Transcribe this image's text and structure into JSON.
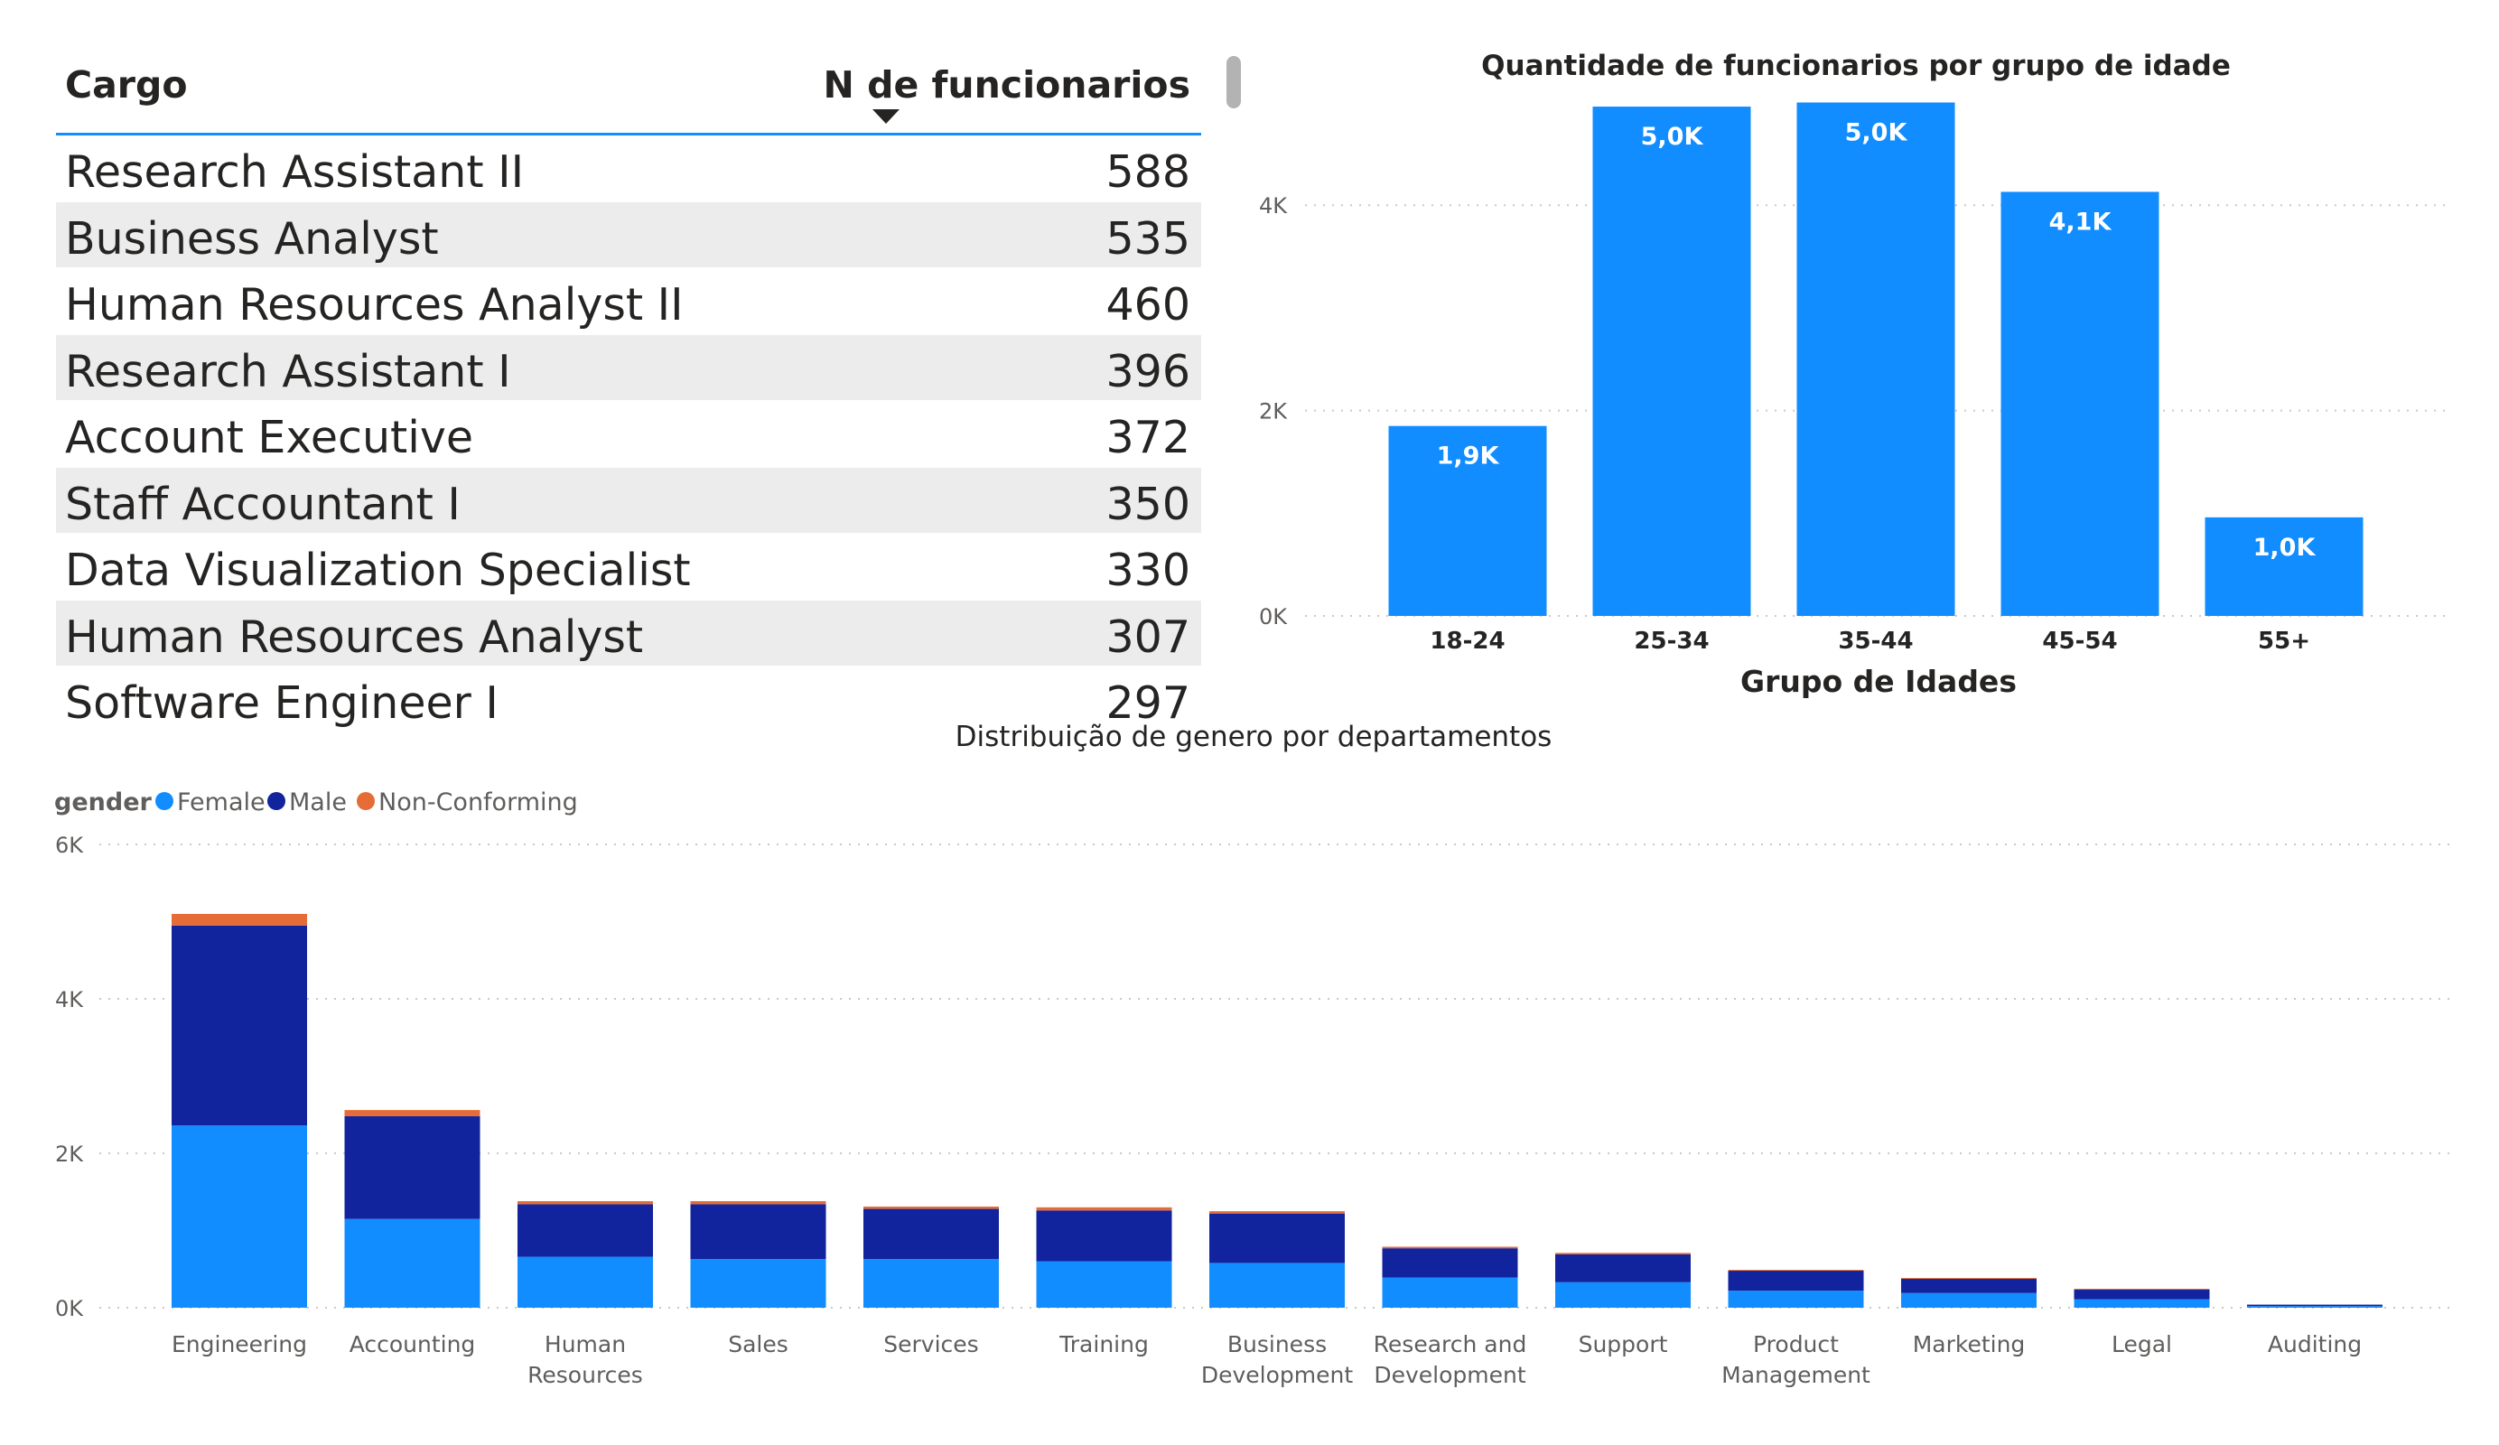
{
  "table": {
    "headers": {
      "cargo": "Cargo",
      "count": "N de funcionarios"
    },
    "rows": [
      {
        "cargo": "Research Assistant II",
        "count": "588"
      },
      {
        "cargo": "Business Analyst",
        "count": "535"
      },
      {
        "cargo": "Human Resources Analyst II",
        "count": "460"
      },
      {
        "cargo": "Research Assistant I",
        "count": "396"
      },
      {
        "cargo": "Account Executive",
        "count": "372"
      },
      {
        "cargo": "Staff Accountant I",
        "count": "350"
      },
      {
        "cargo": "Data Visualization Specialist",
        "count": "330"
      },
      {
        "cargo": "Human Resources Analyst",
        "count": "307"
      },
      {
        "cargo": "Software Engineer I",
        "count": "297"
      }
    ]
  },
  "chart_data": [
    {
      "type": "bar",
      "title": "Quantidade de funcionarios por grupo de idade",
      "xlabel": "Grupo de Idades",
      "ylabel": "",
      "categories": [
        "18-24",
        "25-34",
        "35-44",
        "45-54",
        "55+"
      ],
      "values": [
        1850,
        4960,
        5000,
        4130,
        960
      ],
      "data_labels": [
        "1,9K",
        "5,0K",
        "5,0K",
        "4,1K",
        "1,0K"
      ],
      "ylim": [
        0,
        5200
      ],
      "yticks": [
        {
          "v": 0,
          "label": "0K"
        },
        {
          "v": 2000,
          "label": "2K"
        },
        {
          "v": 4000,
          "label": "4K"
        }
      ],
      "grid": true,
      "color": "#118dff"
    },
    {
      "type": "bar",
      "stacked": true,
      "title": "Distribuição de genero por departamentos",
      "xlabel": "",
      "ylabel": "",
      "legend_title": "gender",
      "legend_placement": "top-left",
      "categories": [
        "Engineering",
        "Accounting",
        "Human Resources",
        "Sales",
        "Services",
        "Training",
        "Business Development",
        "Research and Development",
        "Support",
        "Product Management",
        "Marketing",
        "Legal",
        "Auditing"
      ],
      "category_lines": [
        [
          "Engineering"
        ],
        [
          "Accounting"
        ],
        [
          "Human",
          "Resources"
        ],
        [
          "Sales"
        ],
        [
          "Services"
        ],
        [
          "Training"
        ],
        [
          "Business",
          "Development"
        ],
        [
          "Research and",
          "Development"
        ],
        [
          "Support"
        ],
        [
          "Product",
          "Management"
        ],
        [
          "Marketing"
        ],
        [
          "Legal"
        ],
        [
          "Auditing"
        ]
      ],
      "series": [
        {
          "name": "Female",
          "color": "#118dff",
          "values": [
            2360,
            1150,
            660,
            630,
            630,
            600,
            580,
            390,
            330,
            220,
            190,
            110,
            20
          ]
        },
        {
          "name": "Male",
          "color": "#12239e",
          "values": [
            2590,
            1330,
            680,
            710,
            650,
            660,
            640,
            380,
            360,
            260,
            190,
            130,
            20
          ]
        },
        {
          "name": "Non-Conforming",
          "color": "#e66c37",
          "values": [
            150,
            80,
            40,
            40,
            30,
            40,
            30,
            20,
            20,
            10,
            5,
            5,
            0
          ]
        }
      ],
      "ylim": [
        0,
        6000
      ],
      "yticks": [
        {
          "v": 0,
          "label": "0K"
        },
        {
          "v": 2000,
          "label": "2K"
        },
        {
          "v": 4000,
          "label": "4K"
        },
        {
          "v": 6000,
          "label": "6K"
        }
      ],
      "grid": true
    }
  ]
}
